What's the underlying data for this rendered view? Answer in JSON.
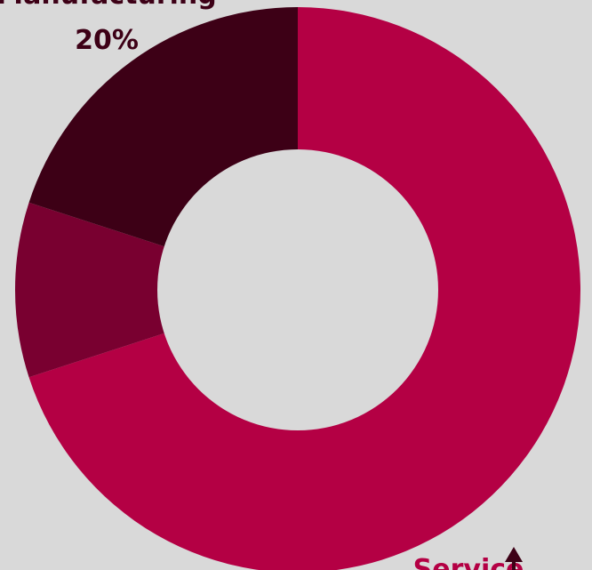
{
  "chart_data": {
    "type": "pie",
    "donut": true,
    "title": "",
    "slices": [
      {
        "label": "Service",
        "value": 70,
        "color": "#b40044"
      },
      {
        "label": "",
        "value": 10,
        "color": "#790030"
      },
      {
        "label": "Manufacturing",
        "value": 20,
        "color": "#3d0016"
      }
    ],
    "labels": [
      {
        "text": "Manufacturing",
        "color": "#3d0016"
      },
      {
        "text": "20%",
        "color": "#3d0016"
      },
      {
        "text": "Service",
        "color": "#b40044"
      }
    ],
    "colors": {
      "background": "#d9d9d9",
      "hole": "#d9d9d9",
      "arrow": "#3d0016"
    }
  }
}
